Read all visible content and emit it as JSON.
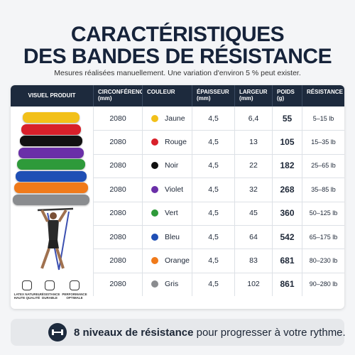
{
  "header": {
    "title_line1": "CARACTÉRISTIQUES",
    "title_line2": "DES BANDES DE RÉSISTANCE",
    "subtitle": "Mesures réalisées manuellement. Une variation d'environ 5 % peut exister."
  },
  "table": {
    "columns": [
      "VISUEL PRODUIT",
      "CIRCONFÉRENCE (mm)",
      "COULEUR",
      "ÉPAISSEUR (mm)",
      "LARGEUR (mm)",
      "POIDS (g)",
      "RÉSISTANCE"
    ],
    "rows": [
      {
        "circumference": "2080",
        "color": "#f2c019",
        "color_name": "Jaune",
        "thickness": "4,5",
        "width": "6,4",
        "weight": "55",
        "resistance": "5–15 lb"
      },
      {
        "circumference": "2080",
        "color": "#d8202a",
        "color_name": "Rouge",
        "thickness": "4,5",
        "width": "13",
        "weight": "105",
        "resistance": "15–35 lb"
      },
      {
        "circumference": "2080",
        "color": "#111111",
        "color_name": "Noir",
        "thickness": "4,5",
        "width": "22",
        "weight": "182",
        "resistance": "25–65 lb"
      },
      {
        "circumference": "2080",
        "color": "#6a2fa8",
        "color_name": "Violet",
        "thickness": "4,5",
        "width": "32",
        "weight": "268",
        "resistance": "35–85 lb"
      },
      {
        "circumference": "2080",
        "color": "#2e9a3a",
        "color_name": "Vert",
        "thickness": "4,5",
        "width": "45",
        "weight": "360",
        "resistance": "50–125 lb"
      },
      {
        "circumference": "2080",
        "color": "#1f4fb5",
        "color_name": "Bleu",
        "thickness": "4,5",
        "width": "64",
        "weight": "542",
        "resistance": "65–175 lb"
      },
      {
        "circumference": "2080",
        "color": "#f07a1a",
        "color_name": "Orange",
        "thickness": "4,5",
        "width": "83",
        "weight": "681",
        "resistance": "80–230 lb"
      },
      {
        "circumference": "2080",
        "color": "#8a8c8f",
        "color_name": "Gris",
        "thickness": "4,5",
        "width": "102",
        "weight": "861",
        "resistance": "90–280 lb"
      }
    ]
  },
  "badges": [
    "LATEX NATUREL HAUTE QUALITÉ",
    "RÉSISTANCE DURABLE",
    "PERFORMANCE OPTIMALE"
  ],
  "banner": {
    "bold": "8 niveaux de résistance",
    "text": " pour progresser à votre rythme."
  }
}
